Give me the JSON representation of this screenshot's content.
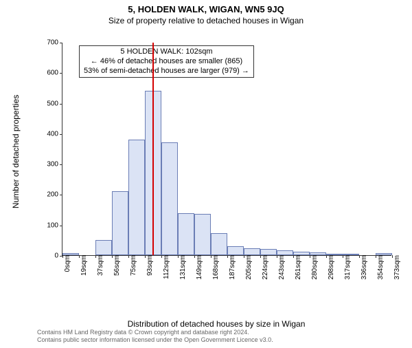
{
  "title": "5, HOLDEN WALK, WIGAN, WN5 9JQ",
  "subtitle": "Size of property relative to detached houses in Wigan",
  "ylabel": "Number of detached properties",
  "xlabel": "Distribution of detached houses by size in Wigan",
  "chart": {
    "type": "histogram",
    "ymin": 0,
    "ymax": 700,
    "ytick_step": 100,
    "yticks": [
      "0",
      "100",
      "200",
      "300",
      "400",
      "500",
      "600",
      "700"
    ],
    "xticks": [
      "0sqm",
      "19sqm",
      "37sqm",
      "56sqm",
      "75sqm",
      "93sqm",
      "112sqm",
      "131sqm",
      "149sqm",
      "168sqm",
      "187sqm",
      "205sqm",
      "224sqm",
      "243sqm",
      "261sqm",
      "280sqm",
      "298sqm",
      "317sqm",
      "336sqm",
      "354sqm",
      "373sqm"
    ],
    "bar_values": [
      7,
      0,
      50,
      210,
      380,
      540,
      370,
      138,
      135,
      72,
      30,
      22,
      20,
      15,
      12,
      8,
      5,
      2,
      0,
      6
    ],
    "bar_fill": "#dbe3f5",
    "bar_border": "#6a7db5",
    "background": "#ffffff",
    "axis_color": "#333333",
    "vline_x_index": 5.47,
    "vline_color": "#d40000",
    "vline_width": 2,
    "tick_fontsize": 10,
    "label_fontsize": 12,
    "title_fontsize": 13,
    "subtitle_fontsize": 12
  },
  "info_box": {
    "line1": "5 HOLDEN WALK: 102sqm",
    "line2": "← 46% of detached houses are smaller (865)",
    "line3": "53% of semi-detached houses are larger (979) →",
    "fontsize": 11
  },
  "footer": {
    "line1": "Contains HM Land Registry data © Crown copyright and database right 2024.",
    "line2": "Contains public sector information licensed under the Open Government Licence v3.0.",
    "fontsize": 9,
    "color": "#666666"
  }
}
